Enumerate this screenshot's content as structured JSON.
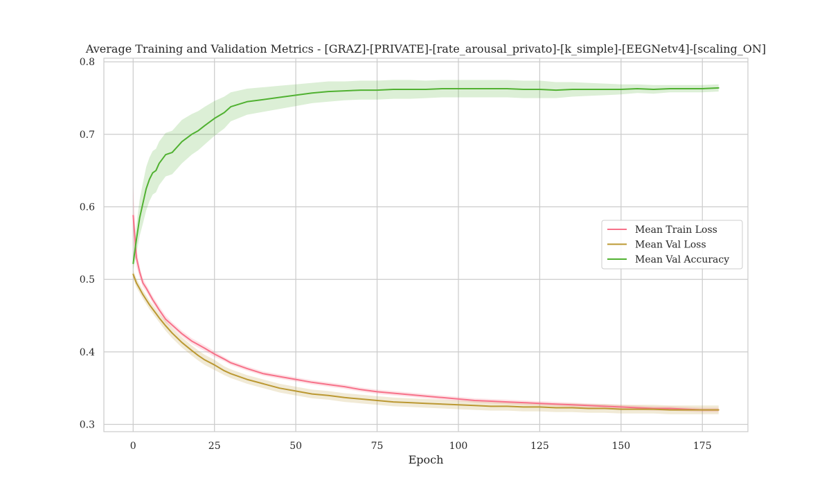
{
  "chart_data": {
    "type": "line",
    "title": "Average Training and Validation Metrics - [GRAZ]-[PRIVATE]-[rate_arousal_privato]-[k_simple]-[EEGNetv4]-[scaling_ON]",
    "xlabel": "Epoch",
    "ylabel": "",
    "xlim": [
      -9,
      189
    ],
    "ylim": [
      0.29,
      0.805
    ],
    "xticks": [
      0,
      25,
      50,
      75,
      100,
      125,
      150,
      175
    ],
    "yticks": [
      0.3,
      0.4,
      0.5,
      0.6,
      0.7,
      0.8
    ],
    "grid": true,
    "legend_position": "center-right",
    "colors": {
      "train_loss": "#f77189",
      "val_loss": "#bb9832",
      "val_accuracy": "#50b131",
      "grid": "#cccccc",
      "frame": "#cccccc"
    },
    "x": [
      0,
      1,
      2,
      3,
      4,
      5,
      6,
      7,
      8,
      10,
      12,
      15,
      18,
      20,
      22,
      25,
      28,
      30,
      35,
      40,
      45,
      50,
      55,
      60,
      65,
      70,
      75,
      80,
      85,
      90,
      95,
      100,
      105,
      110,
      115,
      120,
      125,
      130,
      135,
      140,
      145,
      150,
      155,
      160,
      165,
      170,
      175,
      180
    ],
    "series": [
      {
        "name": "Mean Train Loss",
        "color": "#f77189",
        "values": [
          0.588,
          0.53,
          0.51,
          0.495,
          0.488,
          0.48,
          0.472,
          0.465,
          0.458,
          0.445,
          0.437,
          0.425,
          0.415,
          0.41,
          0.405,
          0.397,
          0.39,
          0.385,
          0.377,
          0.37,
          0.366,
          0.362,
          0.358,
          0.355,
          0.352,
          0.348,
          0.345,
          0.343,
          0.341,
          0.339,
          0.337,
          0.335,
          0.333,
          0.332,
          0.331,
          0.33,
          0.329,
          0.328,
          0.327,
          0.326,
          0.325,
          0.324,
          0.323,
          0.322,
          0.322,
          0.321,
          0.32,
          0.32
        ],
        "band": [
          0.04,
          0.012,
          0.008,
          0.006,
          0.005,
          0.005,
          0.005,
          0.005,
          0.005,
          0.005,
          0.004,
          0.004,
          0.004,
          0.004,
          0.004,
          0.004,
          0.003,
          0.003,
          0.003,
          0.003,
          0.003,
          0.003,
          0.003,
          0.003,
          0.003,
          0.003,
          0.003,
          0.003,
          0.003,
          0.003,
          0.003,
          0.003,
          0.003,
          0.003,
          0.003,
          0.003,
          0.003,
          0.003,
          0.003,
          0.003,
          0.003,
          0.003,
          0.003,
          0.003,
          0.003,
          0.003,
          0.003,
          0.003
        ]
      },
      {
        "name": "Mean Val Loss",
        "color": "#bb9832",
        "values": [
          0.507,
          0.495,
          0.487,
          0.479,
          0.472,
          0.465,
          0.459,
          0.453,
          0.447,
          0.436,
          0.426,
          0.413,
          0.402,
          0.395,
          0.389,
          0.382,
          0.374,
          0.37,
          0.362,
          0.356,
          0.35,
          0.346,
          0.342,
          0.34,
          0.337,
          0.335,
          0.333,
          0.331,
          0.33,
          0.329,
          0.328,
          0.327,
          0.326,
          0.325,
          0.325,
          0.324,
          0.324,
          0.323,
          0.323,
          0.322,
          0.322,
          0.321,
          0.321,
          0.321,
          0.32,
          0.32,
          0.32,
          0.32
        ],
        "band": [
          0.006,
          0.006,
          0.006,
          0.006,
          0.006,
          0.006,
          0.006,
          0.006,
          0.006,
          0.007,
          0.007,
          0.007,
          0.007,
          0.007,
          0.007,
          0.007,
          0.006,
          0.006,
          0.006,
          0.006,
          0.006,
          0.006,
          0.006,
          0.006,
          0.006,
          0.006,
          0.006,
          0.006,
          0.006,
          0.006,
          0.006,
          0.006,
          0.006,
          0.006,
          0.006,
          0.006,
          0.006,
          0.006,
          0.006,
          0.006,
          0.006,
          0.006,
          0.006,
          0.006,
          0.006,
          0.006,
          0.006,
          0.006
        ]
      },
      {
        "name": "Mean Val Accuracy",
        "color": "#50b131",
        "values": [
          0.522,
          0.555,
          0.585,
          0.605,
          0.625,
          0.638,
          0.647,
          0.65,
          0.66,
          0.672,
          0.675,
          0.69,
          0.7,
          0.705,
          0.712,
          0.722,
          0.73,
          0.738,
          0.745,
          0.748,
          0.751,
          0.754,
          0.757,
          0.759,
          0.76,
          0.761,
          0.761,
          0.762,
          0.762,
          0.762,
          0.763,
          0.763,
          0.763,
          0.763,
          0.763,
          0.762,
          0.762,
          0.761,
          0.762,
          0.762,
          0.762,
          0.762,
          0.763,
          0.762,
          0.763,
          0.763,
          0.763,
          0.764
        ],
        "band": [
          0.01,
          0.02,
          0.025,
          0.028,
          0.03,
          0.03,
          0.03,
          0.03,
          0.03,
          0.03,
          0.03,
          0.03,
          0.028,
          0.027,
          0.026,
          0.024,
          0.022,
          0.02,
          0.018,
          0.017,
          0.016,
          0.015,
          0.014,
          0.014,
          0.013,
          0.013,
          0.013,
          0.013,
          0.013,
          0.012,
          0.012,
          0.012,
          0.012,
          0.012,
          0.012,
          0.012,
          0.012,
          0.011,
          0.01,
          0.009,
          0.008,
          0.007,
          0.006,
          0.006,
          0.005,
          0.005,
          0.005,
          0.005
        ]
      }
    ]
  }
}
